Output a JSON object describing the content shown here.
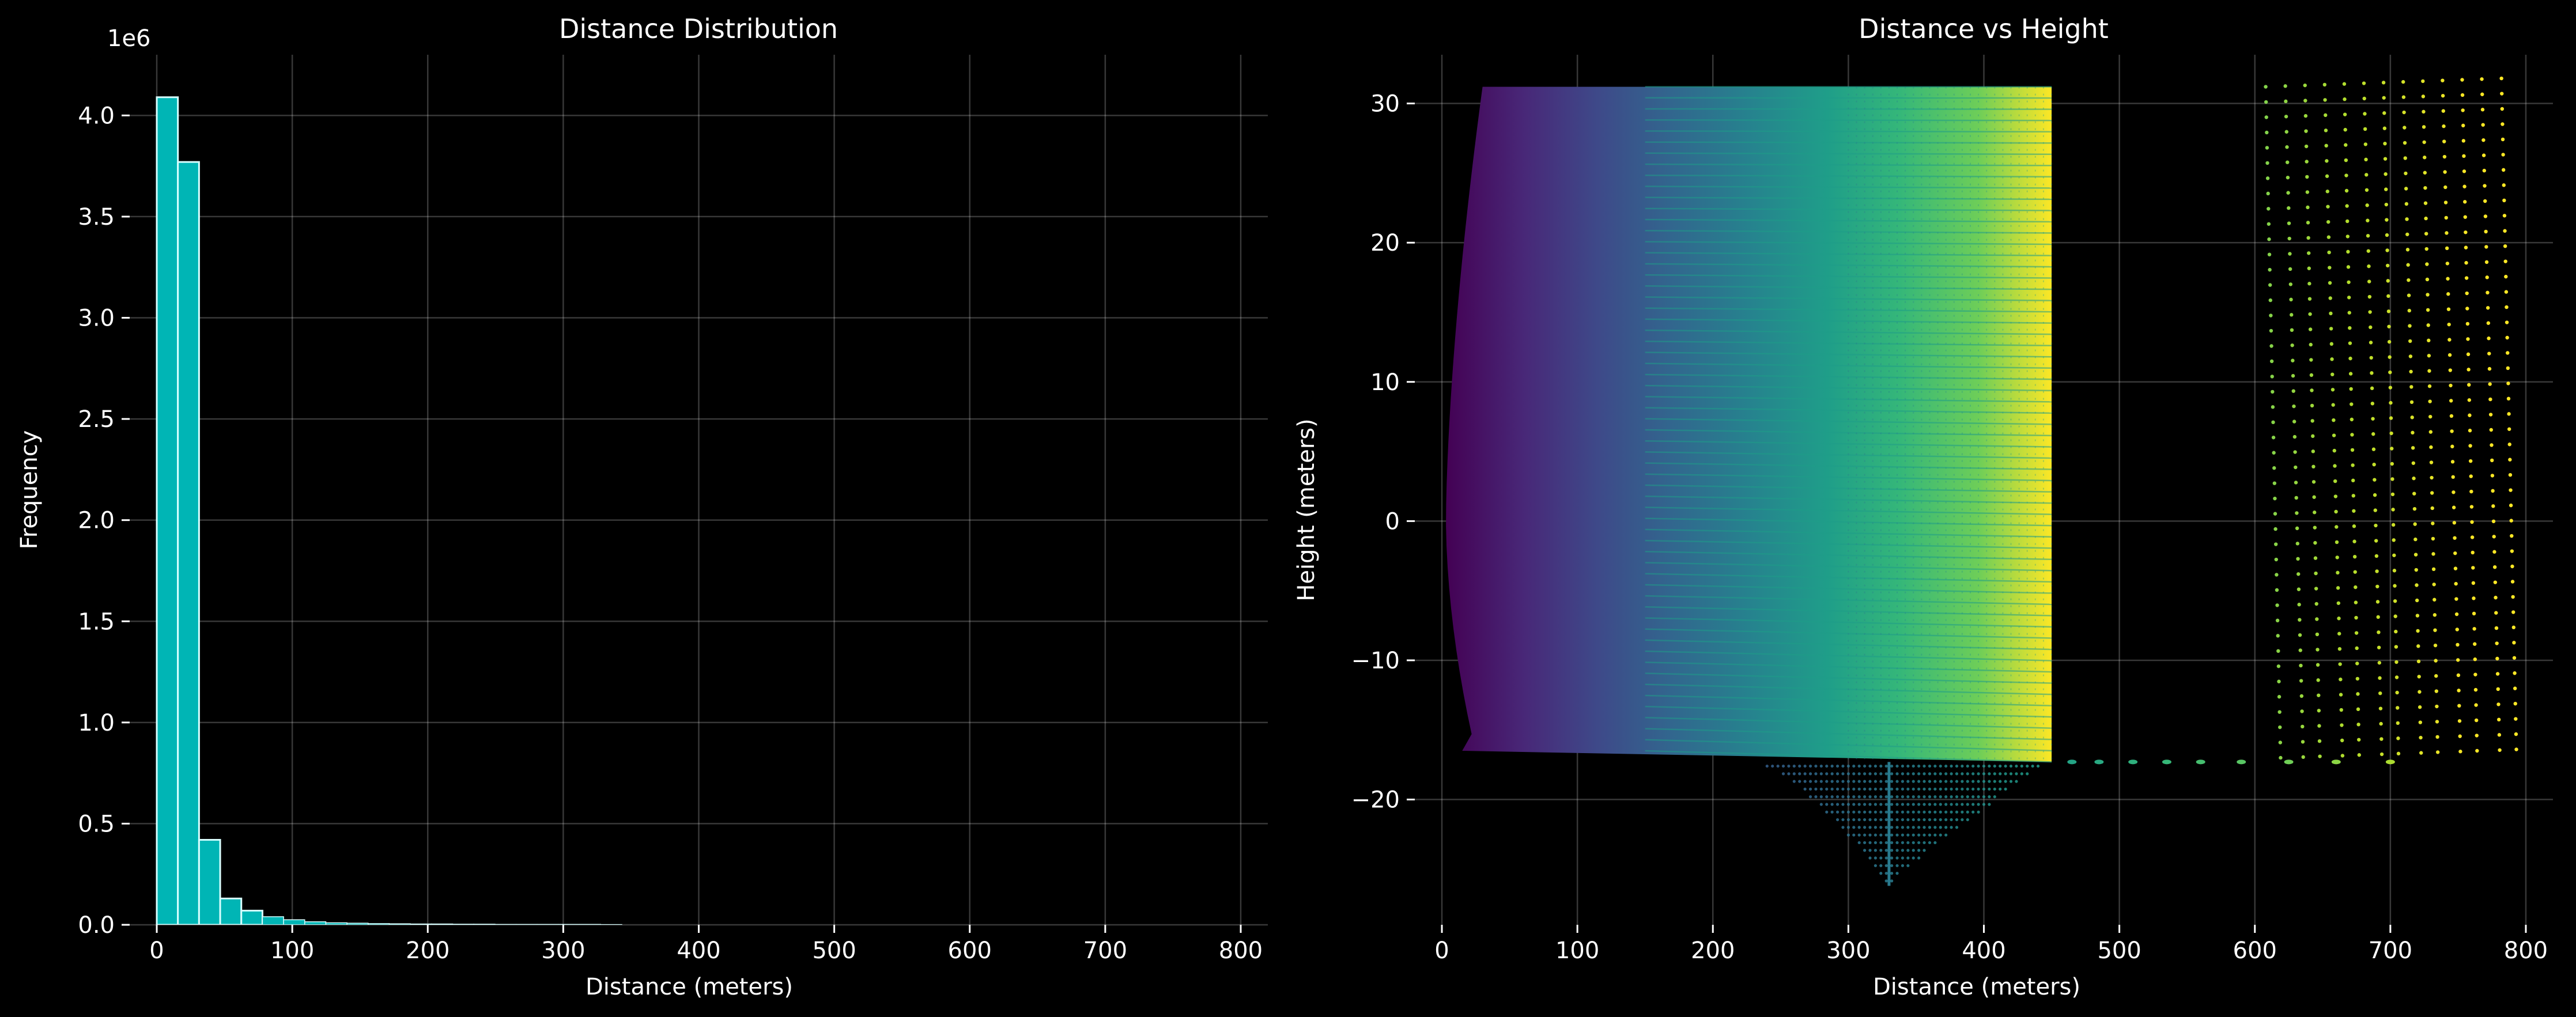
{
  "chart_data": [
    {
      "type": "bar",
      "title": "Distance Distribution",
      "xlabel": "Distance (meters)",
      "ylabel": "Frequency",
      "y_offset_label": "1e6",
      "xlim": [
        -20,
        820
      ],
      "ylim": [
        0,
        4.3
      ],
      "xticks": [
        "0",
        "100",
        "200",
        "300",
        "400",
        "500",
        "600",
        "700",
        "800"
      ],
      "yticks": [
        "0.0",
        "0.5",
        "1.0",
        "1.5",
        "2.0",
        "2.5",
        "3.0",
        "3.5",
        "4.0"
      ],
      "grid": true,
      "bar_color": "#00b5b5",
      "bar_edge_color": "#d8ffff",
      "bin_width": 15.6,
      "bin_start": 0,
      "values": [
        4.09,
        3.77,
        0.42,
        0.13,
        0.07,
        0.04,
        0.025,
        0.015,
        0.01,
        0.008,
        0.006,
        0.005,
        0.004,
        0.004,
        0.003,
        0.003,
        0.002,
        0.002,
        0.002,
        0.002,
        0.002,
        0.001
      ]
    },
    {
      "type": "scatter",
      "title": "Distance vs Height",
      "xlabel": "Distance (meters)",
      "ylabel": "Height (meters)",
      "xlim": [
        -20,
        820
      ],
      "ylim": [
        -29,
        33.5
      ],
      "xticks": [
        "0",
        "100",
        "200",
        "300",
        "400",
        "500",
        "600",
        "700",
        "800"
      ],
      "yticks": [
        "−20",
        "−10",
        "0",
        "10",
        "20",
        "30"
      ],
      "grid": true,
      "colormap": "viridis",
      "color_scale": [
        0,
        800
      ],
      "regions": [
        {
          "name": "dense-fan",
          "x_range": [
            0,
            450
          ],
          "y_top": 31.2,
          "y_bottom_near": -16.5,
          "y_bottom_far": -17.3
        },
        {
          "name": "lower-bulge",
          "x_range": [
            225,
            450
          ],
          "y_min": -26.2,
          "y_min_at": 330
        },
        {
          "name": "far-grid",
          "x_range": [
            605,
            785
          ],
          "y_range": [
            -17.5,
            31.2
          ]
        },
        {
          "name": "ground-line",
          "x_range": [
            450,
            705
          ],
          "y": -17.3
        }
      ]
    }
  ]
}
